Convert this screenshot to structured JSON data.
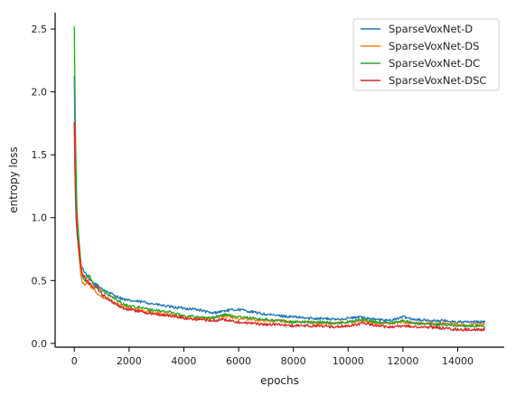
{
  "chart_data": {
    "type": "line",
    "title": "",
    "xlabel": "epochs",
    "ylabel": "entropy loss",
    "xlim": [
      -700,
      15700
    ],
    "ylim": [
      -0.03,
      2.63
    ],
    "xticks": [
      0,
      2000,
      4000,
      6000,
      8000,
      10000,
      12000,
      14000
    ],
    "xtick_labels": [
      "0",
      "2000",
      "4000",
      "6000",
      "8000",
      "10000",
      "12000",
      "14000"
    ],
    "yticks": [
      0.0,
      0.5,
      1.0,
      1.5,
      2.0,
      2.5
    ],
    "ytick_labels": [
      "0.0",
      "0.5",
      "1.0",
      "1.5",
      "2.0",
      "2.5"
    ],
    "grid": false,
    "legend": "top-right",
    "series": [
      {
        "name": "SparseVoxNet-D",
        "color": "#1f77b4",
        "x": [
          0,
          30,
          60,
          100,
          150,
          200,
          250,
          300,
          400,
          500,
          600,
          700,
          800,
          900,
          1000,
          1200,
          1400,
          1600,
          1800,
          2000,
          2500,
          3000,
          3500,
          4000,
          4500,
          5000,
          5500,
          6000,
          6500,
          7000,
          7500,
          8000,
          8500,
          9000,
          9500,
          10000,
          10500,
          11000,
          11500,
          12000,
          12500,
          13000,
          13500,
          14000,
          14500,
          15000
        ],
        "y": [
          2.13,
          1.6,
          1.2,
          0.95,
          0.82,
          0.72,
          0.62,
          0.6,
          0.56,
          0.52,
          0.5,
          0.48,
          0.47,
          0.45,
          0.44,
          0.41,
          0.39,
          0.37,
          0.35,
          0.34,
          0.33,
          0.31,
          0.29,
          0.28,
          0.27,
          0.24,
          0.26,
          0.27,
          0.25,
          0.23,
          0.22,
          0.21,
          0.2,
          0.2,
          0.19,
          0.2,
          0.21,
          0.19,
          0.18,
          0.21,
          0.19,
          0.18,
          0.18,
          0.17,
          0.17,
          0.17
        ]
      },
      {
        "name": "SparseVoxNet-DS",
        "color": "#ff7f0e",
        "x": [
          0,
          30,
          60,
          100,
          150,
          200,
          250,
          300,
          400,
          500,
          600,
          700,
          800,
          900,
          1000,
          1200,
          1400,
          1600,
          1800,
          2000,
          2500,
          3000,
          3500,
          4000,
          4500,
          5000,
          5500,
          6000,
          6500,
          7000,
          7500,
          8000,
          8500,
          9000,
          9500,
          10000,
          10500,
          11000,
          11500,
          12000,
          12500,
          13000,
          13500,
          14000,
          14500,
          15000
        ],
        "y": [
          1.75,
          1.3,
          1.05,
          0.9,
          0.75,
          0.62,
          0.53,
          0.48,
          0.47,
          0.5,
          0.45,
          0.44,
          0.4,
          0.38,
          0.37,
          0.35,
          0.33,
          0.31,
          0.29,
          0.28,
          0.26,
          0.24,
          0.23,
          0.21,
          0.2,
          0.2,
          0.22,
          0.2,
          0.19,
          0.18,
          0.18,
          0.17,
          0.17,
          0.16,
          0.16,
          0.17,
          0.18,
          0.16,
          0.16,
          0.17,
          0.16,
          0.16,
          0.16,
          0.15,
          0.15,
          0.15
        ]
      },
      {
        "name": "SparseVoxNet-DC",
        "color": "#2ca02c",
        "x": [
          0,
          30,
          60,
          100,
          150,
          200,
          250,
          300,
          400,
          500,
          600,
          700,
          800,
          900,
          1000,
          1200,
          1400,
          1600,
          1800,
          2000,
          2500,
          3000,
          3500,
          4000,
          4500,
          5000,
          5500,
          6000,
          6500,
          7000,
          7500,
          8000,
          8500,
          9000,
          9500,
          10000,
          10500,
          11000,
          11500,
          12000,
          12500,
          13000,
          13500,
          14000,
          14500,
          15000
        ],
        "y": [
          2.52,
          1.9,
          1.4,
          1.05,
          0.88,
          0.75,
          0.6,
          0.52,
          0.5,
          0.55,
          0.52,
          0.46,
          0.45,
          0.44,
          0.42,
          0.39,
          0.37,
          0.34,
          0.31,
          0.3,
          0.28,
          0.26,
          0.25,
          0.22,
          0.21,
          0.2,
          0.23,
          0.21,
          0.2,
          0.19,
          0.18,
          0.17,
          0.17,
          0.17,
          0.16,
          0.17,
          0.19,
          0.17,
          0.16,
          0.18,
          0.16,
          0.15,
          0.15,
          0.14,
          0.14,
          0.13
        ]
      },
      {
        "name": "SparseVoxNet-DSC",
        "color": "#d62728",
        "x": [
          0,
          30,
          60,
          100,
          150,
          200,
          250,
          300,
          400,
          500,
          600,
          700,
          800,
          900,
          1000,
          1200,
          1400,
          1600,
          1800,
          2000,
          2500,
          3000,
          3500,
          4000,
          4500,
          5000,
          5500,
          6000,
          6500,
          7000,
          7500,
          8000,
          8500,
          9000,
          9500,
          10000,
          10500,
          11000,
          11500,
          12000,
          12500,
          13000,
          13500,
          14000,
          14500,
          15000
        ],
        "y": [
          1.76,
          1.3,
          1.0,
          0.88,
          0.78,
          0.68,
          0.6,
          0.55,
          0.52,
          0.48,
          0.47,
          0.44,
          0.46,
          0.42,
          0.39,
          0.36,
          0.33,
          0.3,
          0.28,
          0.27,
          0.25,
          0.23,
          0.22,
          0.2,
          0.19,
          0.18,
          0.19,
          0.17,
          0.16,
          0.15,
          0.15,
          0.14,
          0.14,
          0.14,
          0.13,
          0.14,
          0.16,
          0.14,
          0.13,
          0.14,
          0.13,
          0.13,
          0.12,
          0.11,
          0.11,
          0.11
        ]
      }
    ]
  }
}
